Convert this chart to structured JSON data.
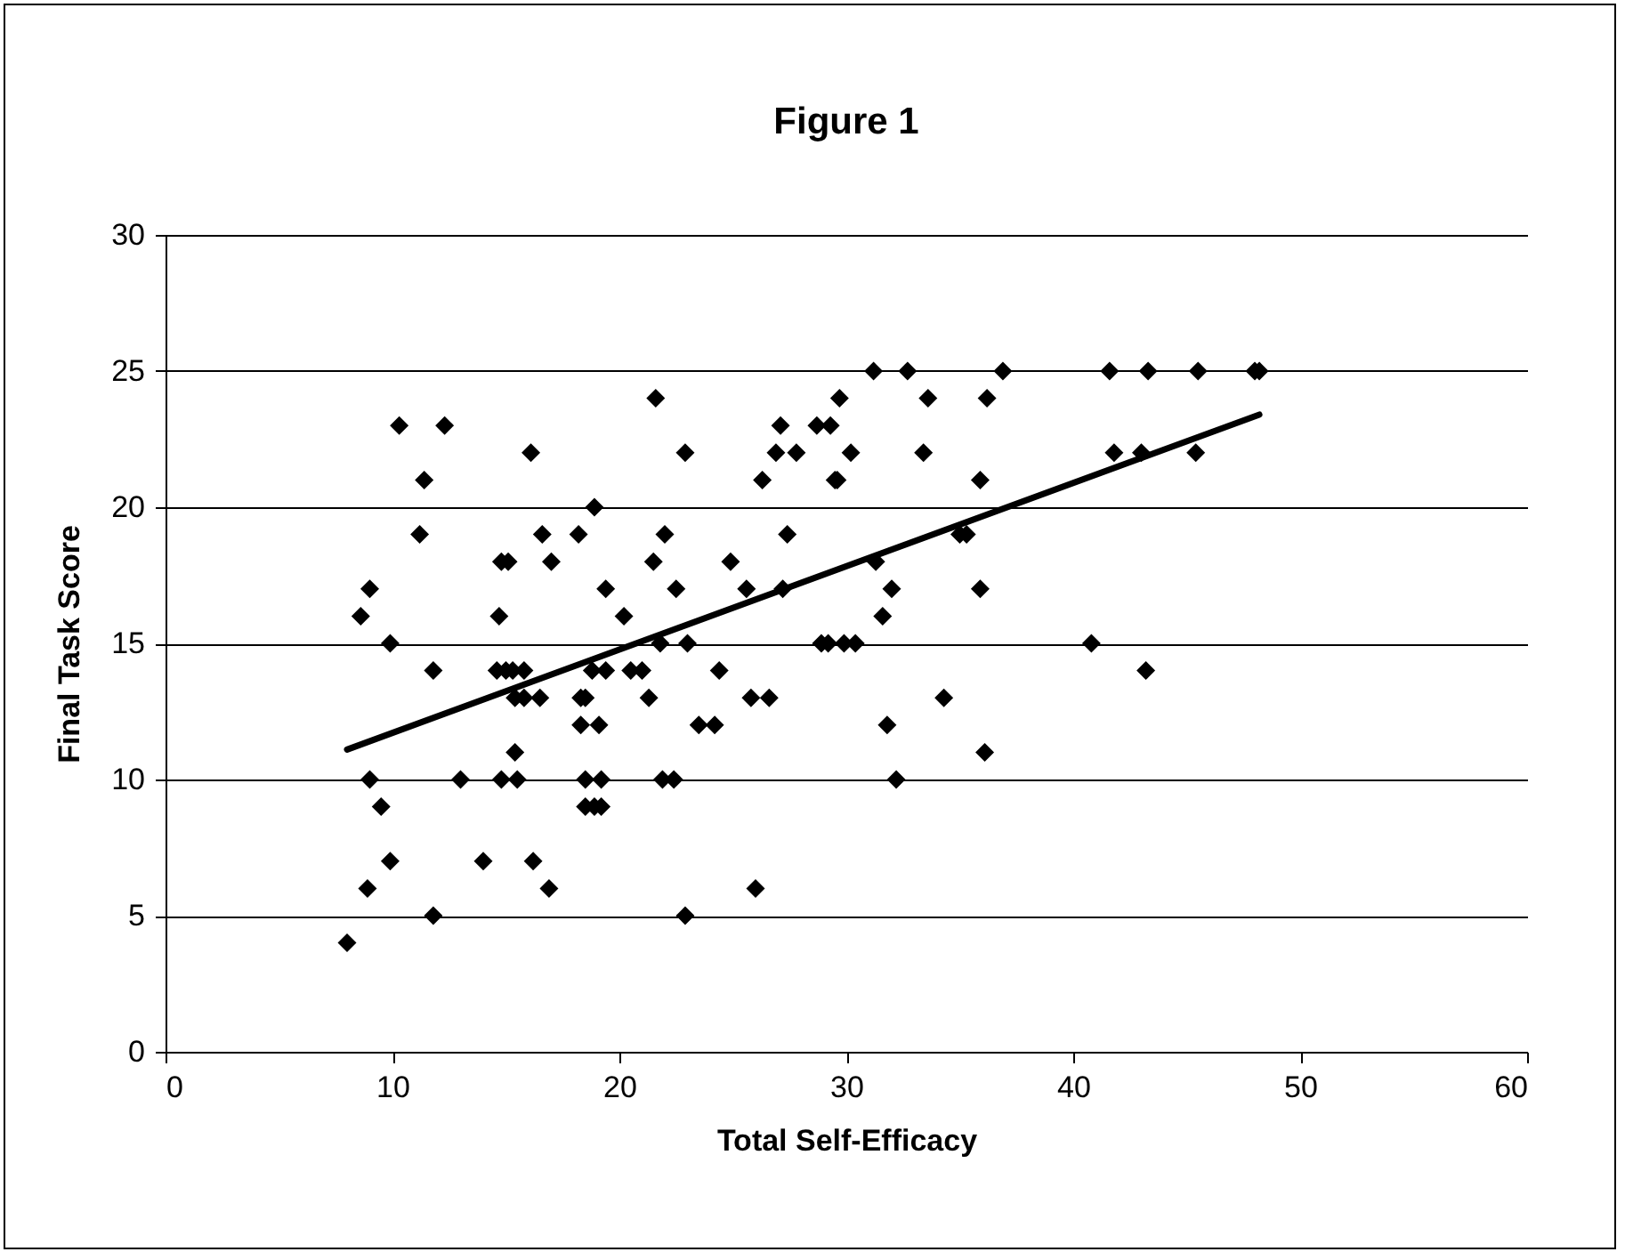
{
  "chart_data": {
    "type": "scatter",
    "title": "Figure 1",
    "xlabel": "Total Self-Efficacy",
    "ylabel": "Final Task Score",
    "xlim": [
      0,
      60
    ],
    "xticks": [
      0,
      10,
      20,
      30,
      40,
      50,
      60
    ],
    "ylim": [
      0,
      30
    ],
    "yticks": [
      0,
      5,
      10,
      15,
      20,
      25,
      30
    ],
    "grid": "y",
    "series": [
      {
        "type": "scatter",
        "color": "#000000",
        "marker": "diamond",
        "x": [
          8.0,
          8.6,
          9.0,
          9.0,
          8.9,
          9.5,
          9.9,
          9.9,
          10.3,
          11.2,
          11.4,
          11.8,
          11.8,
          12.3,
          13.0,
          14.0,
          14.8,
          14.7,
          14.8,
          14.6,
          15.0,
          15.1,
          15.4,
          15.3,
          15.4,
          15.5,
          15.8,
          15.8,
          16.1,
          16.2,
          16.5,
          16.6,
          17.0,
          16.9,
          18.2,
          18.3,
          18.3,
          18.5,
          18.5,
          18.5,
          18.8,
          18.9,
          18.9,
          19.1,
          19.2,
          19.2,
          19.4,
          19.4,
          20.2,
          20.5,
          21.0,
          21.3,
          21.5,
          21.6,
          21.8,
          21.9,
          22.0,
          22.4,
          22.5,
          22.9,
          22.9,
          23.0,
          23.5,
          24.2,
          24.4,
          24.9,
          25.6,
          26.0,
          25.8,
          26.3,
          26.6,
          26.9,
          27.1,
          27.2,
          27.4,
          27.8,
          28.7,
          28.9,
          29.2,
          29.3,
          29.5,
          29.6,
          29.7,
          29.9,
          30.2,
          30.4,
          31.2,
          31.3,
          31.6,
          31.8,
          32.0,
          32.2,
          32.7,
          33.4,
          33.6,
          34.3,
          35.0,
          35.3,
          35.9,
          35.9,
          36.1,
          36.2,
          36.9,
          40.8,
          41.6,
          41.8,
          43.0,
          43.2,
          43.3,
          45.5,
          45.4,
          48.2,
          48.0
        ],
        "values": [
          4,
          16,
          17,
          10,
          6,
          9,
          15,
          7,
          23,
          19,
          21,
          14,
          5,
          23,
          10,
          7,
          10,
          16,
          18,
          14,
          14,
          18,
          11,
          14,
          13,
          10,
          13,
          14,
          22,
          7,
          13,
          19,
          18,
          6,
          19,
          12,
          13,
          10,
          13,
          9,
          14,
          20,
          9,
          12,
          9,
          10,
          14,
          17,
          16,
          14,
          14,
          13,
          18,
          24,
          15,
          10,
          19,
          10,
          17,
          22,
          5,
          15,
          12,
          12,
          14,
          18,
          17,
          6,
          13,
          21,
          13,
          22,
          23,
          17,
          19,
          22,
          23,
          15,
          15,
          23,
          21,
          21,
          24,
          15,
          22,
          15,
          25,
          18,
          16,
          12,
          17,
          10,
          25,
          22,
          24,
          13,
          19,
          19,
          17,
          21,
          11,
          24,
          25,
          15,
          25,
          22,
          22,
          14,
          25,
          25,
          22,
          25,
          25
        ]
      },
      {
        "type": "line",
        "color": "#000000",
        "marker": "none",
        "line_style": "solid",
        "x": [
          8.0,
          48.2
        ],
        "values": [
          11.1,
          23.4
        ]
      }
    ]
  }
}
